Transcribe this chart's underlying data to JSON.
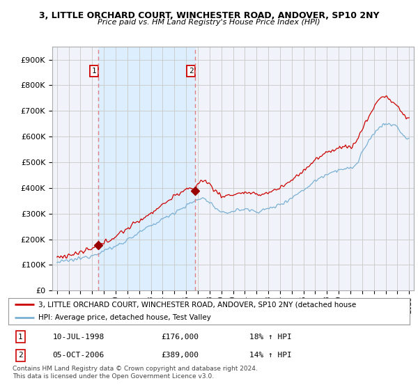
{
  "title": "3, LITTLE ORCHARD COURT, WINCHESTER ROAD, ANDOVER, SP10 2NY",
  "subtitle": "Price paid vs. HM Land Registry's House Price Index (HPI)",
  "ylim": [
    0,
    950000
  ],
  "yticks": [
    0,
    100000,
    200000,
    300000,
    400000,
    500000,
    600000,
    700000,
    800000,
    900000
  ],
  "ytick_labels": [
    "£0",
    "£100K",
    "£200K",
    "£300K",
    "£400K",
    "£500K",
    "£600K",
    "£700K",
    "£800K",
    "£900K"
  ],
  "sale1_date": 1998.53,
  "sale1_price": 176000,
  "sale2_date": 2006.76,
  "sale2_price": 389000,
  "line1_color": "#cc0000",
  "line2_color": "#7ab0d4",
  "dot_color": "#990000",
  "vline_color": "#e08080",
  "shade_color": "#ddeeff",
  "legend_line1": "3, LITTLE ORCHARD COURT, WINCHESTER ROAD, ANDOVER, SP10 2NY (detached house",
  "legend_line2": "HPI: Average price, detached house, Test Valley",
  "table_row1": [
    "1",
    "10-JUL-1998",
    "£176,000",
    "18% ↑ HPI"
  ],
  "table_row2": [
    "2",
    "05-OCT-2006",
    "£389,000",
    "14% ↑ HPI"
  ],
  "footnote": "Contains HM Land Registry data © Crown copyright and database right 2024.\nThis data is licensed under the Open Government Licence v3.0.",
  "background_color": "#ffffff",
  "plot_bg_color": "#f0f4fa",
  "grid_color": "#cccccc"
}
